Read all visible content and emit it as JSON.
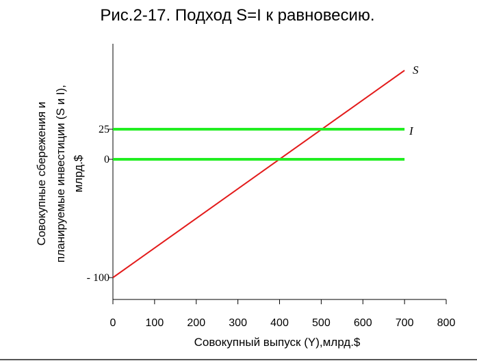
{
  "chart_data": {
    "type": "line",
    "title": "Рис.2-17. Подход S=I к равновесию.",
    "xlabel": "Совокупный выпуск (Y),млрд.$",
    "ylabel_lines": [
      "Совокупные сбережения и",
      "планируемые инвестиции (S и I),",
      "млрд.$"
    ],
    "xlim": [
      0,
      800
    ],
    "x_ticks": [
      "0",
      "100",
      "200",
      "300",
      "400",
      "500",
      "600",
      "700",
      "800"
    ],
    "y_ticks": [
      {
        "value": 25,
        "label": "25"
      },
      {
        "value": 0,
        "label": "0"
      },
      {
        "value": -100,
        "label": "- 100"
      }
    ],
    "grid": false,
    "series": [
      {
        "name": "S",
        "color": "#e31b1b",
        "x": [
          0,
          700
        ],
        "y": [
          -100,
          75
        ]
      },
      {
        "name": "I",
        "color": "#22ee22",
        "x": [
          0,
          700
        ],
        "y": [
          25,
          25
        ]
      },
      {
        "name": "",
        "color": "#22ee22",
        "x": [
          0,
          700
        ],
        "y": [
          0,
          0
        ]
      }
    ]
  },
  "footer_rule_color": "#555555"
}
